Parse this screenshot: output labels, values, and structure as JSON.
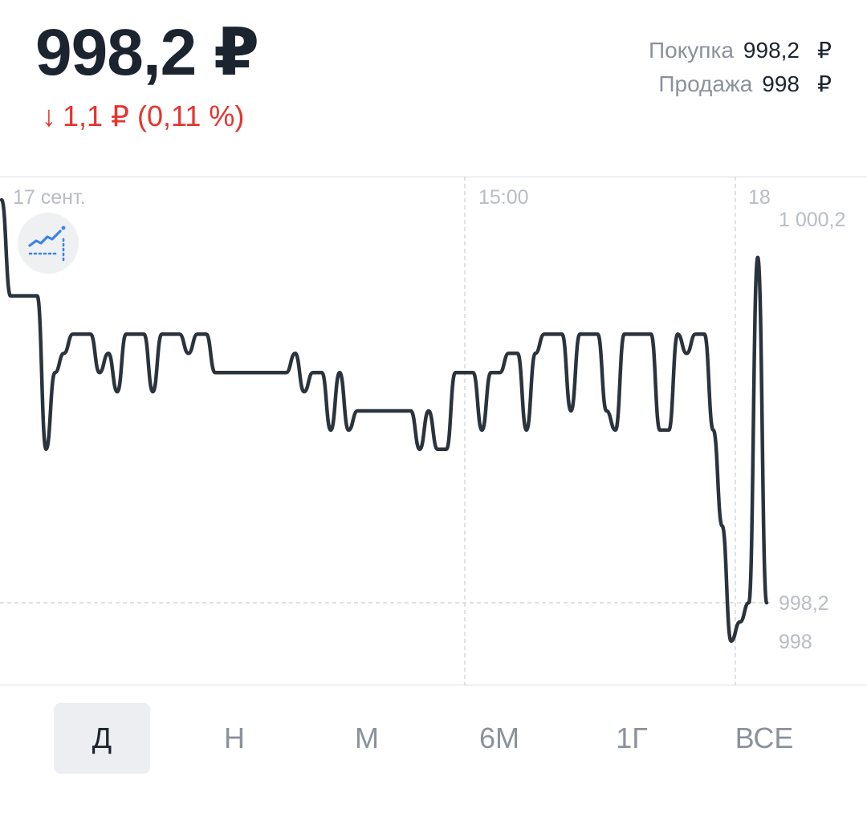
{
  "header": {
    "price": "998,2 ₽",
    "change_arrow": "↓",
    "change_text": "1,1 ₽ (0,11 %)",
    "buy_label": "Покупка",
    "buy_value": "998,2",
    "sell_label": "Продажа",
    "sell_value": "998",
    "currency": "₽",
    "down_color": "#e5342f"
  },
  "indicator_button": {
    "icon": "indicator-chart-icon",
    "color": "#3b82e8"
  },
  "periods": {
    "items": [
      "Д",
      "Н",
      "М",
      "6М",
      "1Г",
      "ВСЕ"
    ],
    "active_index": 0
  },
  "chart_data": {
    "type": "line",
    "x_tick_labels": [
      "17 сент.",
      "15:00",
      "18"
    ],
    "y_tick_labels": [
      "1 000,2",
      "998,2",
      "998"
    ],
    "last_value": 998.2,
    "ylim": [
      997.9,
      1000.3
    ],
    "line_color": "#2b333d",
    "grid": "dashed-vertical",
    "series": [
      {
        "values": [
          1000.3,
          999.8,
          999.8,
          999.8,
          999.8,
          999.0,
          999.4,
          999.5,
          999.6,
          999.6,
          999.6,
          999.4,
          999.5,
          999.3,
          999.6,
          999.6,
          999.6,
          999.3,
          999.6,
          999.6,
          999.6,
          999.5,
          999.6,
          999.6,
          999.4,
          999.4,
          999.4,
          999.4,
          999.4,
          999.4,
          999.4,
          999.4,
          999.4,
          999.5,
          999.3,
          999.4,
          999.4,
          999.1,
          999.4,
          999.1,
          999.2,
          999.2,
          999.2,
          999.2,
          999.2,
          999.2,
          999.2,
          999.0,
          999.2,
          999.0,
          999.0,
          999.4,
          999.4,
          999.4,
          999.1,
          999.4,
          999.4,
          999.5,
          999.5,
          999.1,
          999.5,
          999.6,
          999.6,
          999.6,
          999.2,
          999.6,
          999.6,
          999.6,
          999.2,
          999.1,
          999.6,
          999.6,
          999.6,
          999.6,
          999.1,
          999.1,
          999.6,
          999.5,
          999.6,
          999.6,
          999.1,
          998.6,
          998.0,
          998.1,
          998.2,
          1000.0,
          998.2
        ]
      }
    ]
  }
}
